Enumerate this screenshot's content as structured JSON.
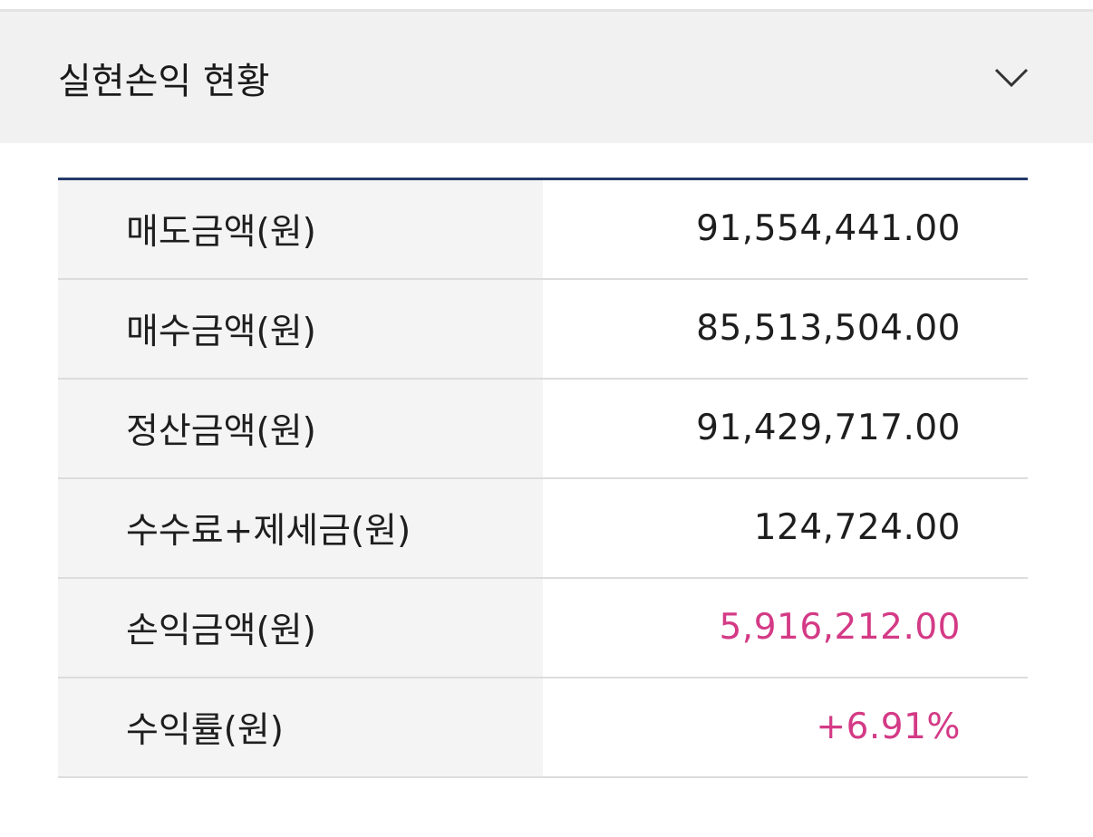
{
  "section": {
    "title": "실현손익 현황",
    "toggle_icon": "chevron-down-icon"
  },
  "rows": [
    {
      "label": "매도금액(원)",
      "value": "91,554,441.00",
      "highlight": false
    },
    {
      "label": "매수금액(원)",
      "value": "85,513,504.00",
      "highlight": false
    },
    {
      "label": "정산금액(원)",
      "value": "91,429,717.00",
      "highlight": false
    },
    {
      "label": "수수료+제세금(원)",
      "value": "124,724.00",
      "highlight": false
    },
    {
      "label": "손익금액(원)",
      "value": "5,916,212.00",
      "highlight": true
    },
    {
      "label": "수익률(원)",
      "value": "+6.91%",
      "highlight": true
    }
  ],
  "colors": {
    "highlight": "#d43a86",
    "table_top_border": "#233a68"
  }
}
